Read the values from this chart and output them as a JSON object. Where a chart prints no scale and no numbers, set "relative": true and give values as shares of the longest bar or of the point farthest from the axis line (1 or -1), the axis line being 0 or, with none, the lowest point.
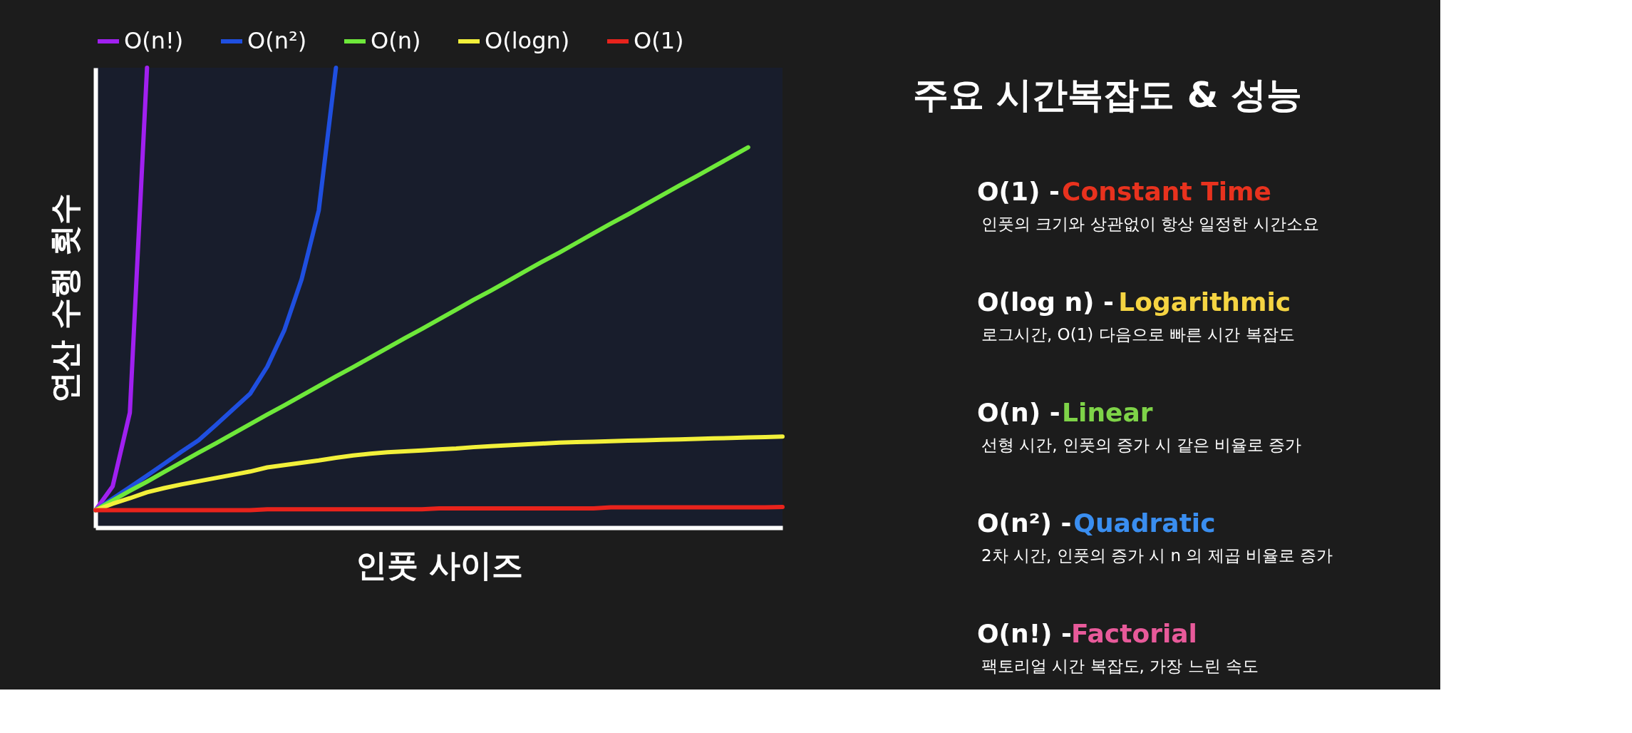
{
  "chart_data": [
    {
      "type": "line",
      "relative": true,
      "legend": "top",
      "xlabel": "인풋 사이즈",
      "ylabel": "연산 수행 횟수",
      "categories": [
        null,
        null,
        null,
        null,
        null,
        null,
        null,
        null,
        null,
        null,
        null,
        null,
        null,
        null,
        null,
        null,
        null,
        null,
        null,
        null,
        null,
        null,
        null,
        null,
        null,
        null,
        null,
        null,
        null,
        null,
        null,
        null,
        null,
        null,
        null,
        null,
        null,
        null,
        null,
        null,
        null
      ],
      "series": [
        {
          "name": "O(n!)",
          "color": "#a020f0",
          "values": [
            0.038,
            0.09,
            0.25,
            1.0,
            null,
            null,
            null,
            null,
            null,
            null,
            null,
            null,
            null,
            null,
            null,
            null,
            null,
            null,
            null,
            null,
            null,
            null,
            null,
            null,
            null,
            null,
            null,
            null,
            null,
            null,
            null,
            null,
            null,
            null,
            null,
            null,
            null,
            null,
            null,
            null,
            null
          ]
        },
        {
          "name": "O(n²)",
          "color": "#1f4fe0",
          "values": [
            0.038,
            0.063,
            0.088,
            0.113,
            0.139,
            0.165,
            0.19,
            0.223,
            0.257,
            0.291,
            0.35,
            0.43,
            0.54,
            0.69,
            1.0,
            null,
            null,
            null,
            null,
            null,
            null,
            null,
            null,
            null,
            null,
            null,
            null,
            null,
            null,
            null,
            null,
            null,
            null,
            null,
            null,
            null,
            null,
            null,
            null,
            null,
            null
          ]
        },
        {
          "name": "O(n)",
          "color": "#6ee83a",
          "values": [
            0.038,
            0.059,
            0.08,
            0.1,
            0.121,
            0.142,
            0.163,
            0.183,
            0.204,
            0.225,
            0.246,
            0.266,
            0.287,
            0.308,
            0.329,
            0.349,
            0.37,
            0.391,
            0.412,
            0.432,
            0.453,
            0.474,
            0.495,
            0.515,
            0.536,
            0.557,
            0.578,
            0.598,
            0.619,
            0.64,
            0.661,
            0.681,
            0.702,
            0.723,
            0.744,
            0.764,
            0.785,
            0.806,
            0.827,
            null,
            null
          ]
        },
        {
          "name": "O(logn)",
          "color": "#f2f03a",
          "values": [
            0.038,
            0.052,
            0.064,
            0.077,
            0.086,
            0.094,
            0.101,
            0.108,
            0.115,
            0.122,
            0.131,
            0.136,
            0.141,
            0.146,
            0.152,
            0.157,
            0.161,
            0.164,
            0.166,
            0.168,
            0.17,
            0.172,
            0.175,
            0.177,
            0.179,
            0.181,
            0.183,
            0.185,
            0.186,
            0.187,
            0.188,
            0.189,
            0.19,
            0.191,
            0.192,
            0.193,
            0.194,
            0.195,
            0.196,
            0.197,
            0.198
          ]
        },
        {
          "name": "O(1)",
          "color": "#e8231c",
          "values": [
            0.038,
            0.038,
            0.038,
            0.038,
            0.038,
            0.038,
            0.038,
            0.038,
            0.038,
            0.038,
            0.04,
            0.04,
            0.04,
            0.04,
            0.04,
            0.04,
            0.04,
            0.04,
            0.04,
            0.04,
            0.042,
            0.042,
            0.042,
            0.042,
            0.042,
            0.042,
            0.042,
            0.042,
            0.042,
            0.042,
            0.044,
            0.044,
            0.044,
            0.044,
            0.044,
            0.044,
            0.044,
            0.044,
            0.044,
            0.044,
            0.045
          ]
        }
      ]
    },
    {
      "type": "other",
      "title": "주요 시간복잡도 & 성능",
      "colors": [
        "#e8321e",
        "#f5d442",
        "#7ed348",
        "#3a8ef0",
        "#e85a9a"
      ],
      "annotations": [
        "O(1) -",
        "Constant Time",
        "인풋의 크기와 상관없이 항상 일정한 시간소요",
        "O(log n) -",
        "Logarithmic",
        "로그시간, O(1) 다음으로 빠른 시간 복잡도",
        "O(n) -",
        "Linear",
        "선형 시간, 인풋의 증가 시 같은 비율로 증가",
        "O(n²) -",
        "Quadratic",
        "2차 시간, 인풋의 증가 시 n 의 제곱 비율로 증가",
        "O(n!) -",
        "Factorial",
        "팩토리얼 시간 복잡도, 가장 느린 속도"
      ]
    }
  ]
}
